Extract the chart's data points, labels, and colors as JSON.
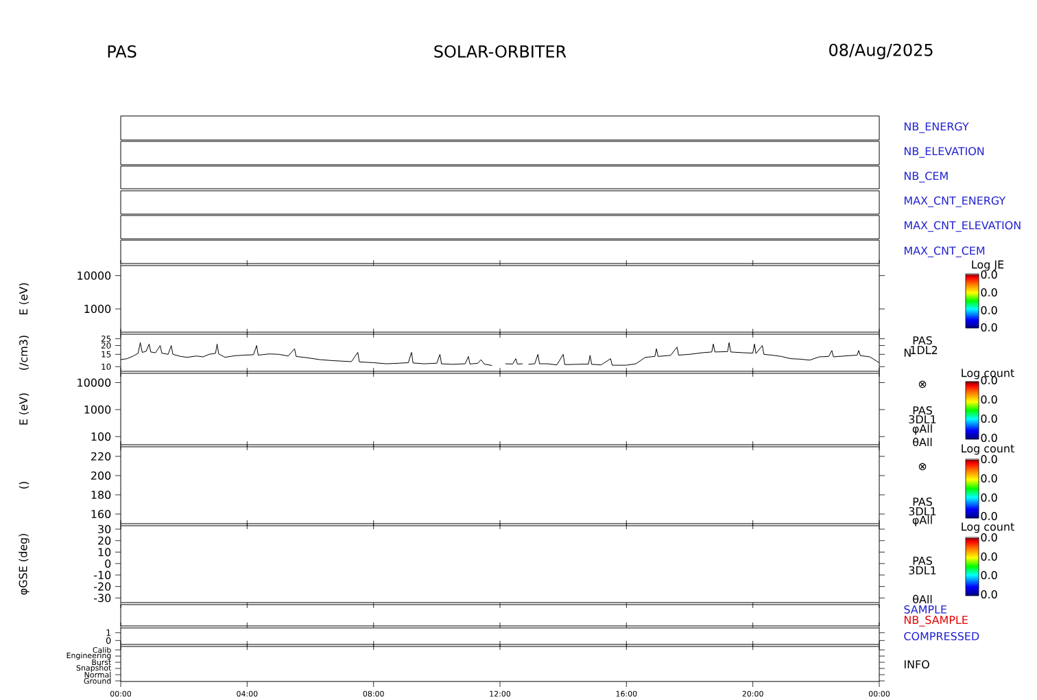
{
  "chart_data": [
    {
      "type": "other",
      "title": "SOLAR-ORBITER",
      "annotations": [
        "PAS",
        "08/Aug/2025"
      ]
    },
    {
      "type": "other",
      "annotations": [
        "NB_ENERGY"
      ]
    },
    {
      "type": "other",
      "annotations": [
        "NB_ELEVATION"
      ]
    },
    {
      "type": "other",
      "annotations": [
        "NB_CEM"
      ]
    },
    {
      "type": "other",
      "annotations": [
        "MAX_CNT_ENERGY"
      ]
    },
    {
      "type": "other",
      "annotations": [
        "MAX_CNT_ELEVATION"
      ]
    },
    {
      "type": "other",
      "annotations": [
        "MAX_CNT_CEM"
      ]
    },
    {
      "type": "heatmap",
      "ylabel": "E (eV)",
      "log": true,
      "ylim": [
        200,
        20000
      ],
      "yticks": [
        1000,
        10000
      ],
      "xlim": [
        0,
        24
      ],
      "xticks": [
        {
          "value": 0,
          "label": null
        },
        {
          "value": 4,
          "label": null
        },
        {
          "value": 8,
          "label": null
        },
        {
          "value": 12,
          "label": null
        },
        {
          "value": 16,
          "label": null
        },
        {
          "value": 20,
          "label": null
        },
        {
          "value": 24,
          "label": null
        }
      ],
      "tick_labels": "y",
      "clabel": "Log JE",
      "annotations": [
        "0.0",
        "0.0",
        "0.0",
        "0.0"
      ]
    },
    {
      "type": "line",
      "ylabel": "(/cm3)",
      "log": true,
      "ylim": [
        8.6,
        29
      ],
      "yticks": [
        10,
        15,
        20,
        25
      ],
      "xlim": [
        0,
        24
      ],
      "xticks": [
        {
          "value": 0,
          "label": null
        },
        {
          "value": 4,
          "label": null
        },
        {
          "value": 8,
          "label": null
        },
        {
          "value": 12,
          "label": null
        },
        {
          "value": 16,
          "label": null
        },
        {
          "value": 20,
          "label": null
        },
        {
          "value": 24,
          "label": null
        }
      ],
      "tick_labels": "y",
      "legend": "right",
      "annotations": [
        "PAS",
        "1DL2"
      ],
      "x": [
        0.0,
        0.2,
        0.4,
        0.55,
        0.62,
        0.68,
        0.8,
        0.9,
        0.95,
        1.1,
        1.25,
        1.3,
        1.5,
        1.6,
        1.65,
        1.9,
        2.1,
        2.4,
        2.6,
        2.8,
        3.0,
        3.05,
        3.1,
        3.3,
        3.6,
        3.9,
        4.2,
        4.3,
        4.35,
        4.7,
        5.0,
        5.3,
        5.5,
        5.55,
        5.9,
        6.3,
        6.7,
        7.0,
        7.3,
        7.5,
        7.55,
        8.0,
        8.4,
        8.8,
        9.1,
        9.2,
        9.25,
        9.6,
        10.0,
        10.1,
        10.15,
        10.5,
        10.9,
        11.0,
        11.05,
        11.3,
        11.4,
        11.5,
        11.75,
        11.9,
        12.17,
        12.4,
        12.5,
        12.55,
        12.72,
        12.8,
        12.9,
        13.1,
        13.2,
        13.25,
        13.5,
        13.8,
        14.0,
        14.05,
        14.4,
        14.8,
        14.85,
        14.9,
        15.2,
        15.5,
        15.55,
        16.0,
        16.3,
        16.6,
        16.9,
        16.95,
        17.0,
        17.4,
        17.6,
        17.65,
        18.0,
        18.4,
        18.7,
        18.75,
        18.8,
        19.2,
        19.25,
        19.3,
        19.7,
        20.0,
        20.05,
        20.1,
        20.3,
        20.35,
        20.6,
        20.9,
        21.2,
        21.5,
        21.8,
        22.1,
        22.4,
        22.5,
        22.55,
        22.9,
        23.3,
        23.35,
        23.4,
        23.7,
        24.0
      ],
      "series": [
        {
          "name": "N",
          "color": "#000000",
          "values": [
            12.6,
            13.0,
            14.2,
            15.5,
            22,
            16,
            16.5,
            21,
            16.2,
            15.8,
            20,
            15.6,
            15.0,
            20,
            15,
            14.0,
            13.6,
            14.2,
            13.8,
            15,
            15.5,
            21,
            15.2,
            13.6,
            14.3,
            14.6,
            14.8,
            20,
            14.6,
            15.2,
            15.0,
            14.2,
            18,
            14.0,
            13.4,
            12.6,
            12.2,
            12.0,
            11.8,
            16,
            11.7,
            11.4,
            11.0,
            11.2,
            11.4,
            16,
            11.3,
            11.0,
            11.2,
            15,
            11.0,
            10.8,
            11.0,
            14,
            10.9,
            11.2,
            12.6,
            10.9,
            10.4,
            null,
            11.0,
            10.9,
            13,
            10.9,
            11.0,
            null,
            10.8,
            11.0,
            15,
            11.0,
            11.0,
            10.6,
            15,
            10.7,
            10.8,
            10.9,
            14.5,
            10.8,
            10.6,
            13,
            10.5,
            10.5,
            11.0,
            13.6,
            14.0,
            18,
            14.0,
            14.5,
            19,
            14.6,
            15.0,
            15.8,
            16.2,
            21,
            16.2,
            16.4,
            22,
            16.2,
            15.8,
            15.6,
            21,
            15.4,
            20,
            15.0,
            14.6,
            14.0,
            13.0,
            12.8,
            12.4,
            13.8,
            14.0,
            17,
            13.8,
            14.2,
            14.6,
            17,
            14.4,
            13.8,
            11.4
          ]
        }
      ]
    },
    {
      "type": "heatmap",
      "ylabel": "E (eV)",
      "log": true,
      "ylim": [
        50,
        22000
      ],
      "yticks": [
        100,
        1000,
        10000
      ],
      "xlim": [
        0,
        24
      ],
      "xticks": [
        {
          "value": 0,
          "label": null
        },
        {
          "value": 4,
          "label": null
        },
        {
          "value": 8,
          "label": null
        },
        {
          "value": 12,
          "label": null
        },
        {
          "value": 16,
          "label": null
        },
        {
          "value": 20,
          "label": null
        },
        {
          "value": 24,
          "label": null
        }
      ],
      "tick_labels": "y",
      "clabel": "Log count",
      "annotations": [
        "⊗",
        "PAS",
        "3DL1",
        "φAll",
        "θAll",
        "0.0",
        "0.0",
        "0.0",
        "0.0"
      ]
    },
    {
      "type": "heatmap",
      "ylabel": "()",
      "ylim": [
        150,
        230
      ],
      "yticks": [
        160,
        180,
        200,
        220
      ],
      "xlim": [
        0,
        24
      ],
      "xticks": [
        {
          "value": 0,
          "label": null
        },
        {
          "value": 4,
          "label": null
        },
        {
          "value": 8,
          "label": null
        },
        {
          "value": 12,
          "label": null
        },
        {
          "value": 16,
          "label": null
        },
        {
          "value": 20,
          "label": null
        },
        {
          "value": 24,
          "label": null
        }
      ],
      "tick_labels": "y",
      "clabel": "Log count",
      "annotations": [
        "⊗",
        "PAS",
        "3DL1",
        "φAll",
        "0.0",
        "0.0",
        "0.0",
        "0.0"
      ]
    },
    {
      "type": "heatmap",
      "ylabel": "φGSE (deg)",
      "ylim": [
        -34,
        33
      ],
      "yticks": [
        -30,
        -20,
        -10,
        0,
        10,
        20,
        30
      ],
      "xlim": [
        0,
        24
      ],
      "xticks": [
        {
          "value": 0,
          "label": null
        },
        {
          "value": 4,
          "label": null
        },
        {
          "value": 8,
          "label": null
        },
        {
          "value": 12,
          "label": null
        },
        {
          "value": 16,
          "label": null
        },
        {
          "value": 20,
          "label": null
        },
        {
          "value": 24,
          "label": null
        }
      ],
      "tick_labels": "y",
      "clabel": "Log count",
      "annotations": [
        "PAS",
        "3DL1",
        "θAll",
        "0.0",
        "0.0",
        "0.0",
        "0.0"
      ]
    },
    {
      "type": "other",
      "annotations": [
        "SAMPLE",
        "NB_SAMPLE"
      ]
    },
    {
      "type": "line",
      "ylim": [
        -0.5,
        1.6
      ],
      "yticks": [
        0,
        1
      ],
      "xlim": [
        0,
        24
      ],
      "xticks": [
        {
          "value": 0,
          "label": null
        },
        {
          "value": 4,
          "label": null
        },
        {
          "value": 8,
          "label": null
        },
        {
          "value": 12,
          "label": null
        },
        {
          "value": 16,
          "label": null
        },
        {
          "value": 20,
          "label": null
        },
        {
          "value": 24,
          "label": null
        }
      ],
      "tick_labels": "y",
      "annotations": [
        "COMPRESSED"
      ]
    },
    {
      "type": "heatmap",
      "y_categories": [
        "Calib",
        "Engineering",
        "Burst",
        "Snapshot",
        "Normal",
        "Ground"
      ],
      "cells": [
        [
          null
        ],
        [
          null
        ],
        [
          null
        ],
        [
          null
        ],
        [
          null
        ],
        [
          null
        ]
      ],
      "xlim": [
        0,
        24
      ],
      "xticks": [
        {
          "value": 0,
          "label": "00:00"
        },
        {
          "value": 4,
          "label": "04:00"
        },
        {
          "value": 8,
          "label": "08:00"
        },
        {
          "value": 12,
          "label": "12:00"
        },
        {
          "value": 16,
          "label": "16:00"
        },
        {
          "value": 20,
          "label": "20:00"
        },
        {
          "value": 24,
          "label": "00:00"
        }
      ],
      "annotations": [
        "INFO"
      ]
    }
  ]
}
